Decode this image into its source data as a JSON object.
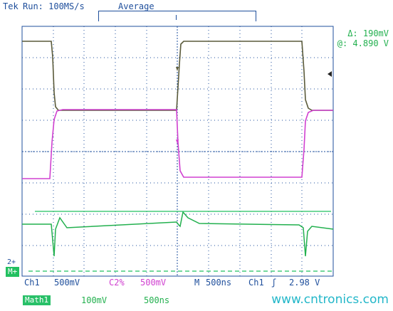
{
  "header": {
    "brand": "Tek",
    "run_status": "Run: 100MS/s",
    "acquire_mode": "Average"
  },
  "readout": {
    "delta": "Δ: 190mV",
    "at": "@: 4.890 V"
  },
  "channels": {
    "ch1": {
      "label": "Ch1",
      "scale": "500mV"
    },
    "ch2": {
      "label": "C2%",
      "scale": "500mV"
    },
    "math": {
      "label": "Math1",
      "scale": "100mV",
      "time": "500ns"
    }
  },
  "timebase": {
    "label": "M",
    "value": "500ns",
    "trigger_source": "Ch1",
    "trigger_level": "2.98 V"
  },
  "markers": {
    "ch2_ref": "2+",
    "math_ref": "M+"
  },
  "watermark": "www.cntronics.com",
  "colors": {
    "ch1": "#5a5a3a",
    "ch2": "#d040d0",
    "math": "#22b04e",
    "grid": "#1f4f9c",
    "text": "#1f4f9c"
  }
}
